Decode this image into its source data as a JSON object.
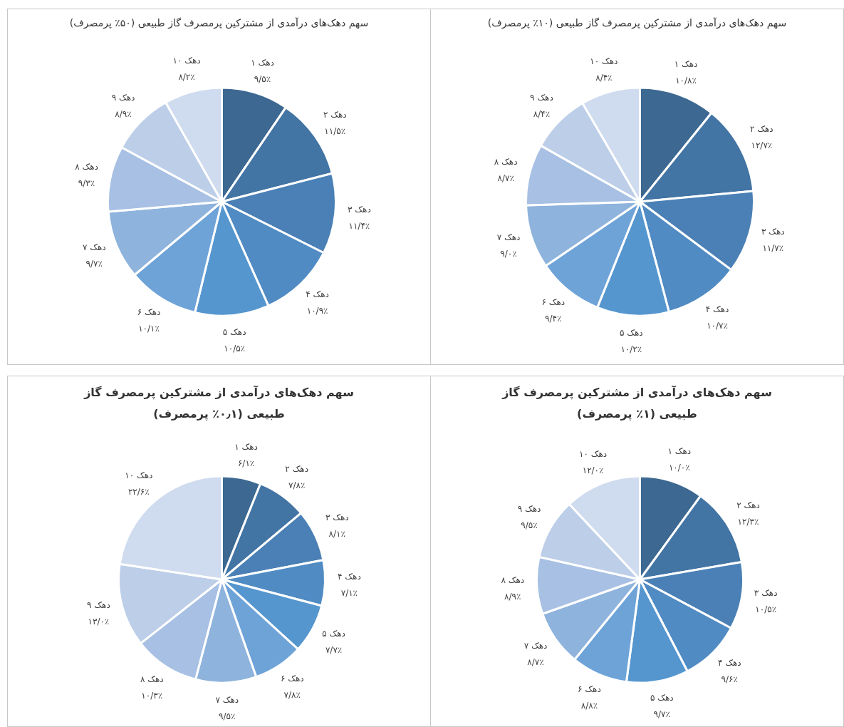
{
  "chart_data": [
    {
      "type": "pie",
      "title": "سهم دهک‌های درآمدی از مشترکین پرمصرف گاز طبیعی (۵۰٪ پرمصرف)",
      "categories": [
        "دهک ۱",
        "دهک ۲",
        "دهک ۳",
        "دهک ۴",
        "دهک ۵",
        "دهک ۶",
        "دهک ۷",
        "دهک ۸",
        "دهک ۹",
        "دهک ۱۰"
      ],
      "values": [
        9.5,
        11.5,
        11.4,
        10.9,
        10.5,
        10.1,
        9.7,
        9.3,
        8.9,
        8.2
      ],
      "value_labels": [
        "۹/۵٪",
        "۱۱/۵٪",
        "۱۱/۴٪",
        "۱۰/۹٪",
        "۱۰/۵٪",
        "۱۰/۱٪",
        "۹/۷٪",
        "۹/۳٪",
        "۸/۹٪",
        "۸/۲٪"
      ],
      "colors": [
        "#3c6891",
        "#4274a4",
        "#4a80b5",
        "#508bc3",
        "#5596cf",
        "#6ea3d8",
        "#8eb3dc",
        "#a7c0e3",
        "#bccee8",
        "#cfdbee"
      ]
    },
    {
      "type": "pie",
      "title": "سهم دهک‌های درآمدی از مشترکین پرمصرف گاز طبیعی (۱۰٪ پرمصرف)",
      "categories": [
        "دهک ۱",
        "دهک ۲",
        "دهک ۳",
        "دهک ۴",
        "دهک ۵",
        "دهک ۶",
        "دهک ۷",
        "دهک ۸",
        "دهک ۹",
        "دهک ۱۰"
      ],
      "values": [
        10.8,
        12.7,
        11.7,
        10.7,
        10.2,
        9.4,
        9.0,
        8.7,
        8.4,
        8.4
      ],
      "value_labels": [
        "۱۰/۸٪",
        "۱۲/۷٪",
        "۱۱/۷٪",
        "۱۰/۷٪",
        "۱۰/۲٪",
        "۹/۴٪",
        "۹/۰٪",
        "۸/۷٪",
        "۸/۴٪",
        "۸/۴٪"
      ],
      "colors": [
        "#3c6891",
        "#4274a4",
        "#4a80b5",
        "#508bc3",
        "#5596cf",
        "#6ea3d8",
        "#8eb3dc",
        "#a7c0e3",
        "#bccee8",
        "#cfdbee"
      ]
    },
    {
      "type": "pie",
      "title": "سهم دهک‌های درآمدی از مشترکین پرمصرف گاز طبیعی (۰٫۱٪ پرمصرف)",
      "categories": [
        "دهک ۱",
        "دهک ۲",
        "دهک ۳",
        "دهک ۴",
        "دهک ۵",
        "دهک ۶",
        "دهک ۷",
        "دهک ۸",
        "دهک ۹",
        "دهک ۱۰"
      ],
      "values": [
        6.1,
        7.8,
        8.1,
        7.1,
        7.7,
        7.8,
        9.5,
        10.3,
        13.0,
        22.6
      ],
      "value_labels": [
        "۶/۱٪",
        "۷/۸٪",
        "۸/۱٪",
        "۷/۱٪",
        "۷/۷٪",
        "۷/۸٪",
        "۹/۵٪",
        "۱۰/۳٪",
        "۱۳/۰٪",
        "۲۲/۶٪"
      ],
      "colors": [
        "#3c6891",
        "#4274a4",
        "#4a80b5",
        "#508bc3",
        "#5596cf",
        "#6ea3d8",
        "#8eb3dc",
        "#a7c0e3",
        "#bccee8",
        "#cfdbee"
      ]
    },
    {
      "type": "pie",
      "title": "سهم دهک‌های درآمدی از مشترکین پرمصرف گاز طبیعی (۱٪ پرمصرف)",
      "categories": [
        "دهک ۱",
        "دهک ۲",
        "دهک ۳",
        "دهک ۴",
        "دهک ۵",
        "دهک ۶",
        "دهک ۷",
        "دهک ۸",
        "دهک ۹",
        "دهک ۱۰"
      ],
      "values": [
        10.0,
        12.3,
        10.5,
        9.6,
        9.7,
        8.8,
        8.7,
        8.9,
        9.5,
        12.0
      ],
      "value_labels": [
        "۱۰/۰٪",
        "۱۲/۳٪",
        "۱۰/۵٪",
        "۹/۶٪",
        "۹/۷٪",
        "۸/۸٪",
        "۸/۷٪",
        "۸/۹٪",
        "۹/۵٪",
        "۱۲/۰٪"
      ],
      "colors": [
        "#3c6891",
        "#4274a4",
        "#4a80b5",
        "#508bc3",
        "#5596cf",
        "#6ea3d8",
        "#8eb3dc",
        "#a7c0e3",
        "#bccee8",
        "#cfdbee"
      ]
    }
  ]
}
